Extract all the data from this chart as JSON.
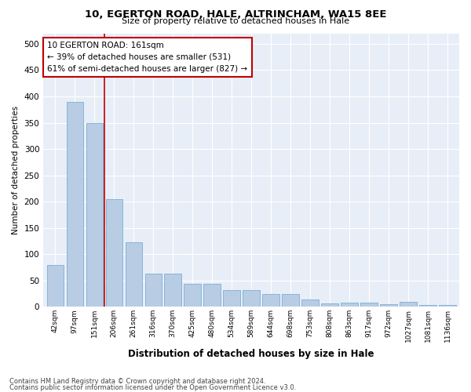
{
  "title1": "10, EGERTON ROAD, HALE, ALTRINCHAM, WA15 8EE",
  "title2": "Size of property relative to detached houses in Hale",
  "xlabel": "Distribution of detached houses by size in Hale",
  "ylabel": "Number of detached properties",
  "categories": [
    "42sqm",
    "97sqm",
    "151sqm",
    "206sqm",
    "261sqm",
    "316sqm",
    "370sqm",
    "425sqm",
    "480sqm",
    "534sqm",
    "589sqm",
    "644sqm",
    "698sqm",
    "753sqm",
    "808sqm",
    "863sqm",
    "917sqm",
    "972sqm",
    "1027sqm",
    "1081sqm",
    "1136sqm"
  ],
  "values": [
    79,
    390,
    350,
    205,
    122,
    63,
    63,
    44,
    44,
    32,
    32,
    24,
    24,
    14,
    7,
    8,
    8,
    5,
    10,
    3,
    3
  ],
  "bar_color": "#b8cce4",
  "bar_edge_color": "#7bafd4",
  "vline_x": 2.5,
  "vline_color": "#c00000",
  "annotation_lines": [
    "10 EGERTON ROAD: 161sqm",
    "← 39% of detached houses are smaller (531)",
    "61% of semi-detached houses are larger (827) →"
  ],
  "annotation_box_color": "#c00000",
  "ylim": [
    0,
    520
  ],
  "yticks": [
    0,
    50,
    100,
    150,
    200,
    250,
    300,
    350,
    400,
    450,
    500
  ],
  "footnote1": "Contains HM Land Registry data © Crown copyright and database right 2024.",
  "footnote2": "Contains public sector information licensed under the Open Government Licence v3.0.",
  "bg_color": "#e8eef7"
}
